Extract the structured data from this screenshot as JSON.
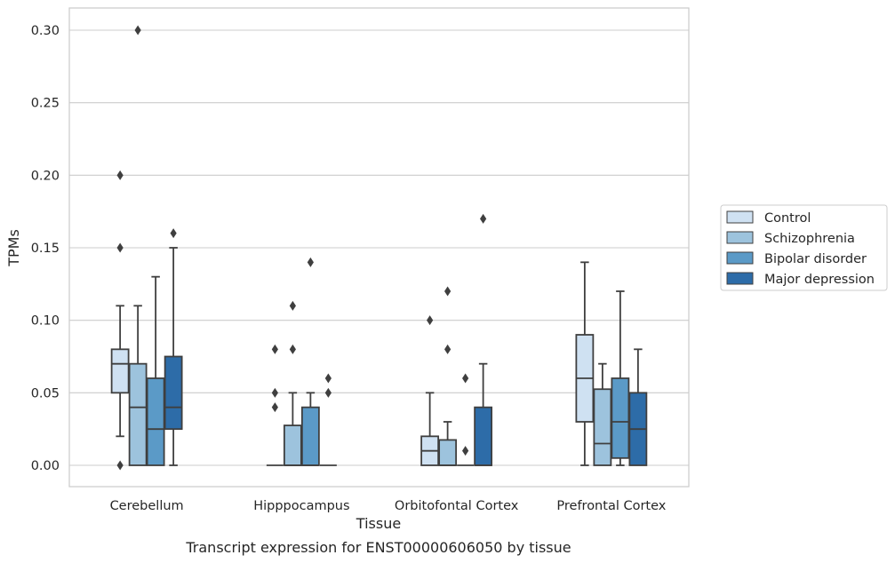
{
  "chart_data": {
    "type": "box",
    "title": "",
    "caption": "Transcript expression for ENST00000606050 by tissue",
    "xlabel": "Tissue",
    "ylabel": "TPMs",
    "ylim": [
      -0.015,
      0.315
    ],
    "yticks": [
      "0.00",
      "0.05",
      "0.10",
      "0.15",
      "0.20",
      "0.25",
      "0.30"
    ],
    "grid": "horizontal",
    "legend_position": "right",
    "categories": [
      "Cerebellum",
      "Hipppocampus",
      "Orbitofontal Cortex",
      "Prefrontal Cortex"
    ],
    "series": [
      {
        "name": "Control",
        "color": "#cfe1f2",
        "boxes": [
          {
            "whislo": 0.02,
            "q1": 0.05,
            "med": 0.07,
            "q3": 0.08,
            "whishi": 0.11,
            "fliers": [
              0.0,
              0.15,
              0.2
            ]
          },
          {
            "whislo": 0.0,
            "q1": 0.0,
            "med": 0.0,
            "q3": 0.0,
            "whishi": 0.0,
            "fliers": [
              0.04,
              0.05,
              0.08
            ]
          },
          {
            "whislo": 0.0,
            "q1": 0.0,
            "med": 0.01,
            "q3": 0.02,
            "whishi": 0.05,
            "fliers": [
              0.1
            ]
          },
          {
            "whislo": 0.0,
            "q1": 0.03,
            "med": 0.06,
            "q3": 0.09,
            "whishi": 0.14,
            "fliers": []
          }
        ]
      },
      {
        "name": "Schizophrenia",
        "color": "#9dc3dd",
        "boxes": [
          {
            "whislo": 0.0,
            "q1": 0.0,
            "med": 0.04,
            "q3": 0.07,
            "whishi": 0.11,
            "fliers": [
              0.3
            ]
          },
          {
            "whislo": 0.0,
            "q1": 0.0,
            "med": 0.0,
            "q3": 0.0275,
            "whishi": 0.05,
            "fliers": [
              0.08,
              0.11
            ]
          },
          {
            "whislo": 0.0,
            "q1": 0.0,
            "med": 0.0,
            "q3": 0.0175,
            "whishi": 0.03,
            "fliers": [
              0.08,
              0.12
            ]
          },
          {
            "whislo": 0.0,
            "q1": 0.0,
            "med": 0.015,
            "q3": 0.0525,
            "whishi": 0.07,
            "fliers": []
          }
        ]
      },
      {
        "name": "Bipolar disorder",
        "color": "#5b9ac7",
        "boxes": [
          {
            "whislo": 0.0,
            "q1": 0.0,
            "med": 0.025,
            "q3": 0.06,
            "whishi": 0.13,
            "fliers": []
          },
          {
            "whislo": 0.0,
            "q1": 0.0,
            "med": 0.0,
            "q3": 0.04,
            "whishi": 0.05,
            "fliers": [
              0.14
            ]
          },
          {
            "whislo": 0.0,
            "q1": 0.0,
            "med": 0.0,
            "q3": 0.0,
            "whishi": 0.0,
            "fliers": [
              0.01,
              0.06
            ]
          },
          {
            "whislo": 0.0,
            "q1": 0.005,
            "med": 0.03,
            "q3": 0.06,
            "whishi": 0.12,
            "fliers": []
          }
        ]
      },
      {
        "name": "Major depression",
        "color": "#2d6ca8",
        "boxes": [
          {
            "whislo": 0.0,
            "q1": 0.025,
            "med": 0.04,
            "q3": 0.075,
            "whishi": 0.15,
            "fliers": [
              0.16
            ]
          },
          {
            "whislo": 0.0,
            "q1": 0.0,
            "med": 0.0,
            "q3": 0.0,
            "whishi": 0.0,
            "fliers": [
              0.05,
              0.06
            ]
          },
          {
            "whislo": 0.0,
            "q1": 0.0,
            "med": 0.0,
            "q3": 0.04,
            "whishi": 0.07,
            "fliers": [
              0.17
            ]
          },
          {
            "whislo": 0.0,
            "q1": 0.0,
            "med": 0.025,
            "q3": 0.05,
            "whishi": 0.08,
            "fliers": []
          }
        ]
      }
    ]
  }
}
